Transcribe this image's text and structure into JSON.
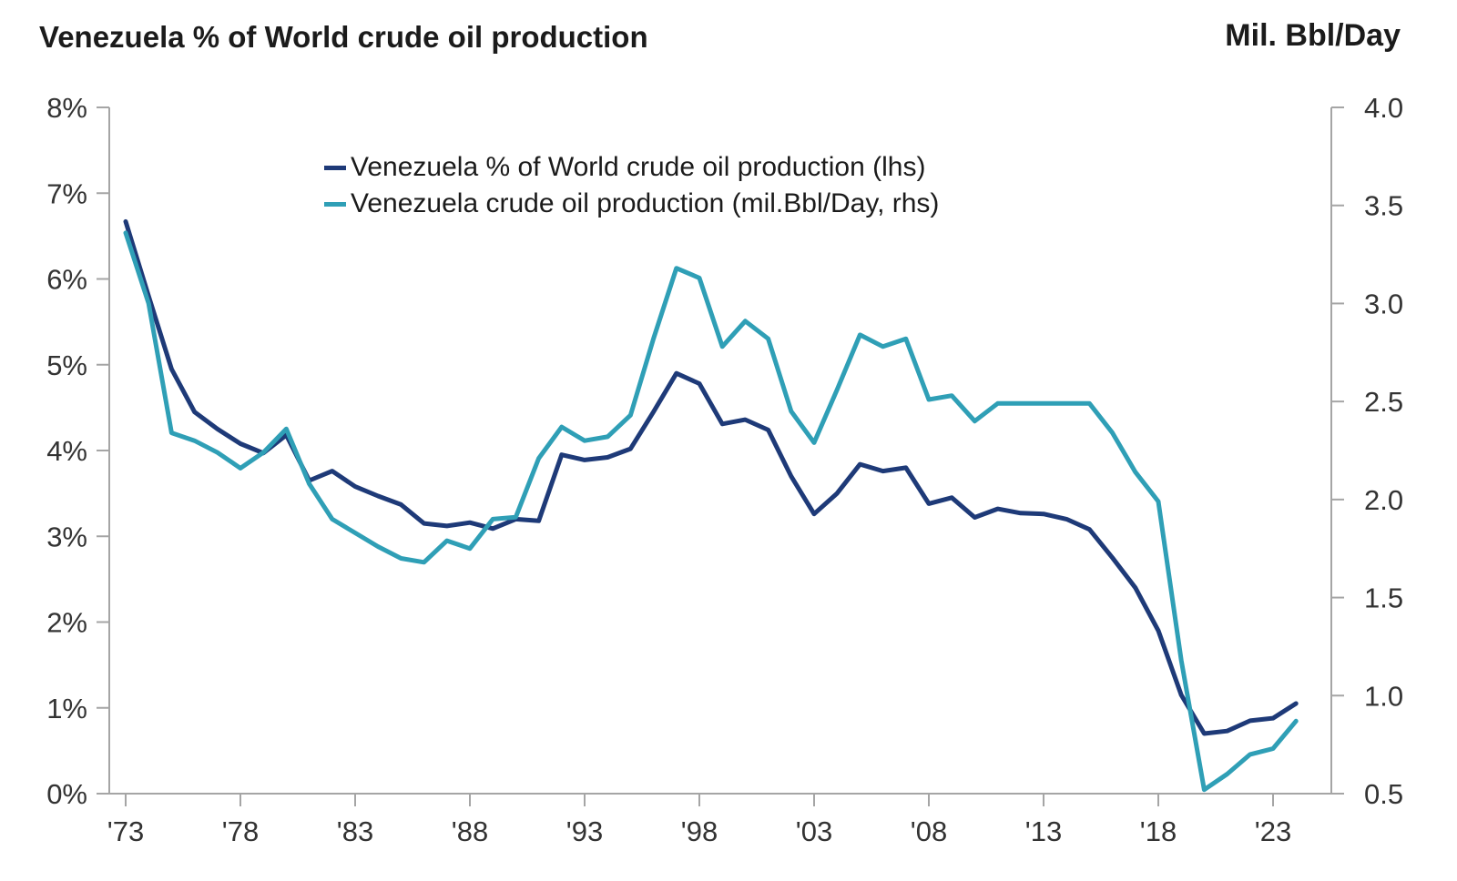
{
  "chart_data": {
    "type": "line",
    "title": "Venezuela % of World crude oil production",
    "right_axis_title": "Mil. Bbl/Day",
    "grid": false,
    "legend_position": "top-inside",
    "x": [
      1973,
      1974,
      1975,
      1976,
      1977,
      1978,
      1979,
      1980,
      1981,
      1982,
      1983,
      1984,
      1985,
      1986,
      1987,
      1988,
      1989,
      1990,
      1991,
      1992,
      1993,
      1994,
      1995,
      1996,
      1997,
      1998,
      1999,
      2000,
      2001,
      2002,
      2003,
      2004,
      2005,
      2006,
      2007,
      2008,
      2009,
      2010,
      2011,
      2012,
      2013,
      2014,
      2015,
      2016,
      2017,
      2018,
      2019,
      2020,
      2021,
      2022,
      2023,
      2024
    ],
    "x_ticks": {
      "values": [
        1973,
        1978,
        1983,
        1988,
        1993,
        1998,
        2003,
        2008,
        2013,
        2018,
        2023
      ],
      "labels": [
        "'73",
        "'78",
        "'83",
        "'88",
        "'93",
        "'98",
        "'03",
        "'08",
        "'13",
        "'18",
        "'23"
      ]
    },
    "left_axis": {
      "min": 0,
      "max": 8,
      "tick_values": [
        0,
        1,
        2,
        3,
        4,
        5,
        6,
        7,
        8
      ],
      "tick_labels": [
        "0%",
        "1%",
        "2%",
        "3%",
        "4%",
        "5%",
        "6%",
        "7%",
        "8%"
      ]
    },
    "right_axis": {
      "min": 0.5,
      "max": 4.0,
      "tick_values": [
        0.5,
        1.0,
        1.5,
        2.0,
        2.5,
        3.0,
        3.5,
        4.0
      ],
      "tick_labels": [
        "0.5",
        "1.0",
        "1.5",
        "2.0",
        "2.5",
        "3.0",
        "3.5",
        "4.0"
      ]
    },
    "series": [
      {
        "name": "Venezuela % of World crude oil production (lhs)",
        "axis": "left",
        "color": "#1e3a78",
        "values": [
          6.67,
          5.8,
          4.95,
          4.45,
          4.25,
          4.08,
          3.97,
          4.18,
          3.65,
          3.76,
          3.58,
          3.47,
          3.37,
          3.15,
          3.12,
          3.16,
          3.09,
          3.2,
          3.18,
          3.95,
          3.89,
          3.92,
          4.02,
          4.45,
          4.9,
          4.78,
          4.31,
          4.36,
          4.24,
          3.7,
          3.26,
          3.5,
          3.84,
          3.76,
          3.8,
          3.38,
          3.45,
          3.22,
          3.32,
          3.27,
          3.26,
          3.2,
          3.08,
          2.75,
          2.4,
          1.9,
          1.15,
          0.7,
          0.73,
          0.85,
          0.88,
          1.05
        ]
      },
      {
        "name": "Venezuela crude oil production (mil.Bbl/Day, rhs)",
        "axis": "right",
        "color": "#2f9fb6",
        "values": [
          3.36,
          3.0,
          2.34,
          2.3,
          2.24,
          2.16,
          2.24,
          2.36,
          2.08,
          1.9,
          1.83,
          1.76,
          1.7,
          1.68,
          1.79,
          1.75,
          1.9,
          1.91,
          2.21,
          2.37,
          2.3,
          2.32,
          2.43,
          2.82,
          3.18,
          3.13,
          2.78,
          2.91,
          2.82,
          2.45,
          2.29,
          2.56,
          2.84,
          2.78,
          2.82,
          2.51,
          2.53,
          2.4,
          2.49,
          2.49,
          2.49,
          2.49,
          2.49,
          2.34,
          2.14,
          1.99,
          1.18,
          0.52,
          0.6,
          0.7,
          0.73,
          0.87
        ]
      }
    ],
    "colors": {
      "axis": "#a5a5a5",
      "text": "#333333"
    }
  }
}
